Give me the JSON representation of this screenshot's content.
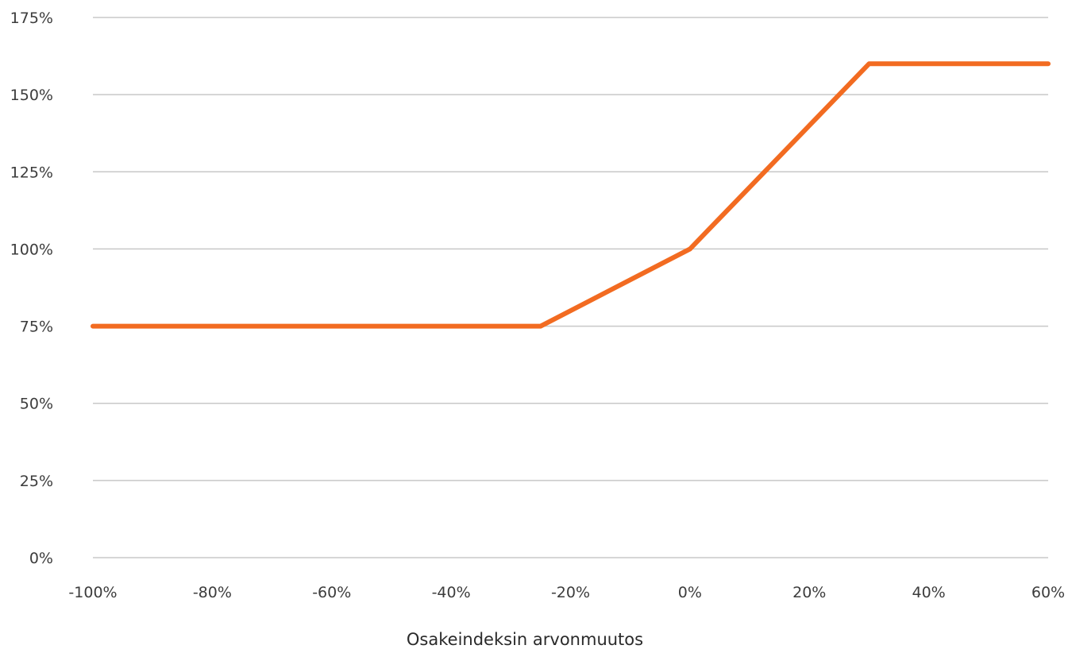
{
  "chart_data": {
    "type": "line",
    "title": "",
    "xlabel": "Osakeindeksin arvonmuutos",
    "ylabel": "",
    "xlim": [
      -100,
      60
    ],
    "ylim": [
      0,
      175
    ],
    "x_ticks": [
      -100,
      -80,
      -60,
      -40,
      -20,
      0,
      20,
      40,
      60
    ],
    "x_tick_labels": [
      "-100%",
      "-80%",
      "-60%",
      "-40%",
      "-20%",
      "0%",
      "20%",
      "40%",
      "60%"
    ],
    "y_ticks": [
      0,
      25,
      50,
      75,
      100,
      125,
      150,
      175
    ],
    "y_tick_labels": [
      "0%",
      "25%",
      "50%",
      "75%",
      "100%",
      "125%",
      "150%",
      "175%"
    ],
    "grid": "horizontal",
    "legend": "none",
    "color": "#f26b21",
    "series": [
      {
        "x": [
          -100,
          -25,
          0,
          30,
          60
        ],
        "y": [
          75,
          75,
          100,
          160,
          160
        ]
      }
    ]
  }
}
